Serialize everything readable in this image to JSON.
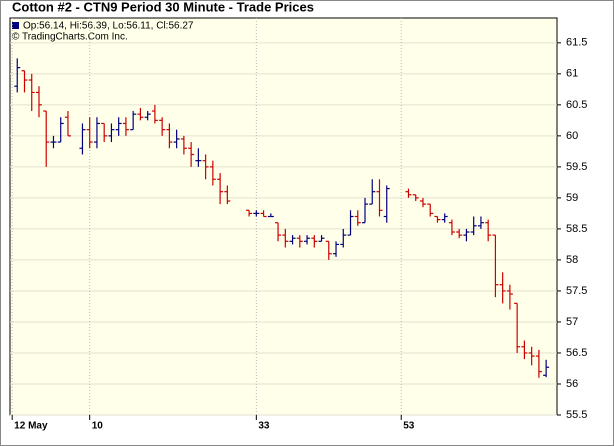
{
  "chart_data": {
    "type": "ohlc",
    "title": "Cotton #2 - CTN9 Period 30 Minute - Trade Prices",
    "legend": "Op:56.14, Hi:56.39, Lo:56.11, Cl:56.27",
    "copyright": "© TradingCharts.Com Inc.",
    "x": [
      0,
      1,
      2,
      3,
      4,
      5,
      6,
      7,
      9,
      10,
      11,
      12,
      13,
      14,
      15,
      16,
      17,
      18,
      19,
      20,
      21,
      22,
      23,
      24,
      25,
      26,
      27,
      28,
      29,
      32,
      33,
      34,
      35,
      36,
      37,
      38,
      39,
      40,
      41,
      42,
      43,
      44,
      45,
      46,
      47,
      48,
      49,
      50,
      51,
      54,
      55,
      56,
      57,
      58,
      59,
      60,
      61,
      62,
      63,
      64,
      65,
      66,
      67,
      68,
      69,
      70,
      71,
      72,
      73
    ],
    "open": [
      60.8,
      61.05,
      60.9,
      60.7,
      60.4,
      59.9,
      59.9,
      60.3,
      59.8,
      60.1,
      59.9,
      60.2,
      60.0,
      60.1,
      60.2,
      60.1,
      60.35,
      60.3,
      60.4,
      60.25,
      60.1,
      59.9,
      59.95,
      59.8,
      59.6,
      59.6,
      59.5,
      59.3,
      59.1,
      58.8,
      58.75,
      58.75,
      58.7,
      58.6,
      58.4,
      58.3,
      58.35,
      58.3,
      58.35,
      58.3,
      58.3,
      58.1,
      58.25,
      58.4,
      58.7,
      58.6,
      58.9,
      59.1,
      58.7,
      59.1,
      59.05,
      58.95,
      58.9,
      58.7,
      58.65,
      58.6,
      58.45,
      58.4,
      58.45,
      58.55,
      58.6,
      58.4,
      57.6,
      57.5,
      57.3,
      56.6,
      56.5,
      56.45,
      56.14
    ],
    "high": [
      61.25,
      61.05,
      61.0,
      60.8,
      60.4,
      60.0,
      60.3,
      60.4,
      60.2,
      60.3,
      60.3,
      60.2,
      60.2,
      60.3,
      60.3,
      60.4,
      60.45,
      60.4,
      60.5,
      60.3,
      60.2,
      60.1,
      60.0,
      59.9,
      59.8,
      59.7,
      59.6,
      59.4,
      59.2,
      58.8,
      58.8,
      58.8,
      58.75,
      58.6,
      58.5,
      58.4,
      58.4,
      58.4,
      58.4,
      58.4,
      58.3,
      58.3,
      58.5,
      58.8,
      58.8,
      59.0,
      59.3,
      59.3,
      59.2,
      59.15,
      59.05,
      59.0,
      58.9,
      58.7,
      58.75,
      58.65,
      58.5,
      58.5,
      58.7,
      58.7,
      58.65,
      58.4,
      57.8,
      57.6,
      57.3,
      56.7,
      56.6,
      56.55,
      56.39
    ],
    "low": [
      60.7,
      60.7,
      60.4,
      60.3,
      59.5,
      59.8,
      59.9,
      60.0,
      59.7,
      59.8,
      59.8,
      59.9,
      59.9,
      60.0,
      60.0,
      60.1,
      60.25,
      60.25,
      60.2,
      60.0,
      59.8,
      59.8,
      59.7,
      59.5,
      59.5,
      59.3,
      59.2,
      58.9,
      58.9,
      58.7,
      58.7,
      58.7,
      58.7,
      58.3,
      58.2,
      58.25,
      58.2,
      58.25,
      58.2,
      58.3,
      58.0,
      58.05,
      58.2,
      58.4,
      58.55,
      58.6,
      58.9,
      58.7,
      58.6,
      59.0,
      58.95,
      58.85,
      58.7,
      58.6,
      58.6,
      58.4,
      58.35,
      58.3,
      58.4,
      58.5,
      58.3,
      57.4,
      57.3,
      57.2,
      56.5,
      56.4,
      56.3,
      56.1,
      56.11
    ],
    "close": [
      61.1,
      60.9,
      60.7,
      60.5,
      59.9,
      59.9,
      60.2,
      60.0,
      60.1,
      59.9,
      60.2,
      60.0,
      60.1,
      60.2,
      60.1,
      60.35,
      60.3,
      60.35,
      60.25,
      60.1,
      59.9,
      59.95,
      59.8,
      59.7,
      59.6,
      59.5,
      59.3,
      59.1,
      58.95,
      58.75,
      58.75,
      58.7,
      58.7,
      58.4,
      58.3,
      58.35,
      58.3,
      58.35,
      58.3,
      58.35,
      58.1,
      58.25,
      58.4,
      58.7,
      58.6,
      58.9,
      59.1,
      58.8,
      59.15,
      59.05,
      59.0,
      58.9,
      58.75,
      58.65,
      58.7,
      58.45,
      58.4,
      58.45,
      58.55,
      58.6,
      58.4,
      57.6,
      57.5,
      57.45,
      56.6,
      56.5,
      56.45,
      56.2,
      56.27
    ],
    "xlim": [
      -1,
      74.5
    ],
    "ylim": [
      55.5,
      61.9
    ],
    "xticks": [
      {
        "value": -0.7,
        "label": "12 May"
      },
      10,
      33,
      53
    ],
    "yticks": [
      55.5,
      56,
      56.5,
      57,
      57.5,
      58,
      58.5,
      59,
      59.5,
      60,
      60.5,
      61,
      61.5
    ],
    "grid": true,
    "up_color": "#00007f",
    "down_color": "#cc0000"
  }
}
